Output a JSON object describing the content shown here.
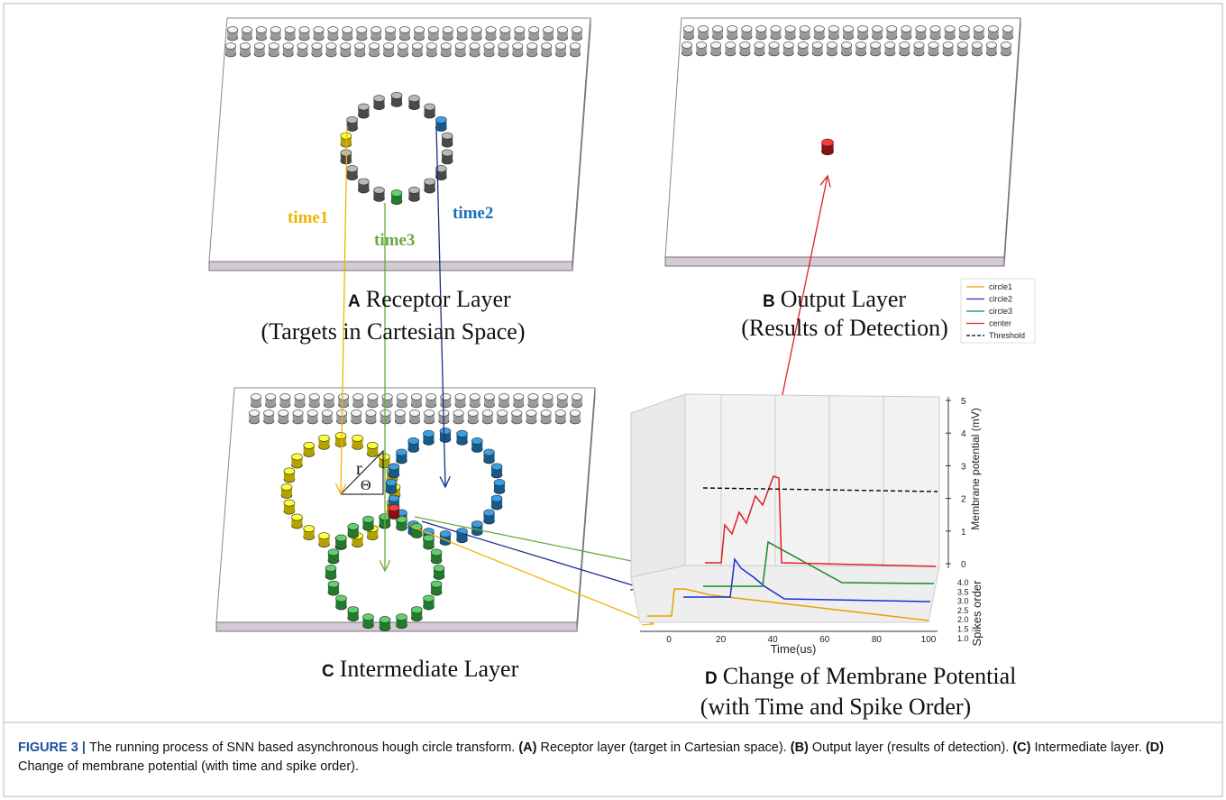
{
  "panels": {
    "A": {
      "letter": "A",
      "title": "Receptor Layer",
      "subtitle": "(Targets in Cartesian Space)",
      "labels": {
        "time1": "time1",
        "time2": "time2",
        "time3": "time3"
      }
    },
    "B": {
      "letter": "B",
      "title": "Output Layer",
      "subtitle": "(Results of Detection)"
    },
    "C": {
      "letter": "C",
      "title": "Intermediate Layer",
      "labels": {
        "r": "r",
        "theta": "Θ"
      }
    },
    "D": {
      "letter": "D",
      "title": "Change of Membrane Potential",
      "subtitle": "(with Time and Spike Order)",
      "legend": [
        "circle1",
        "circle2",
        "circle3",
        "center",
        "Threshold"
      ],
      "x_label": "Time(us)",
      "y_label": "Membrane potential (mV)",
      "z_label": "Spikes order",
      "x_ticks": [
        "0",
        "20",
        "40",
        "60",
        "80",
        "100"
      ],
      "y_ticks": [
        "0",
        "1",
        "2",
        "3",
        "4",
        "5"
      ],
      "z_ticks": [
        "4.0",
        "3.5",
        "3.0",
        "2.5",
        "2.0",
        "1.5",
        "1.0"
      ]
    }
  },
  "caption": [
    {
      "text": "FIGURE 3 | ",
      "bold": true
    },
    {
      "text": "The running process of SNN based asynchronous hough circle transform. ",
      "bold": false
    },
    {
      "text": "(A)",
      "bold": true
    },
    {
      "text": " Receptor layer (target in Cartesian space). ",
      "bold": false
    },
    {
      "text": "(B)",
      "bold": true
    },
    {
      "text": " Output layer (results of detection). ",
      "bold": false
    },
    {
      "text": "(C)",
      "bold": true
    },
    {
      "text": " Intermediate layer. ",
      "bold": false
    },
    {
      "text": "(D)",
      "bold": true
    },
    {
      "text": " Change of membrane potential (with time and spike order).",
      "bold": false
    }
  ]
}
